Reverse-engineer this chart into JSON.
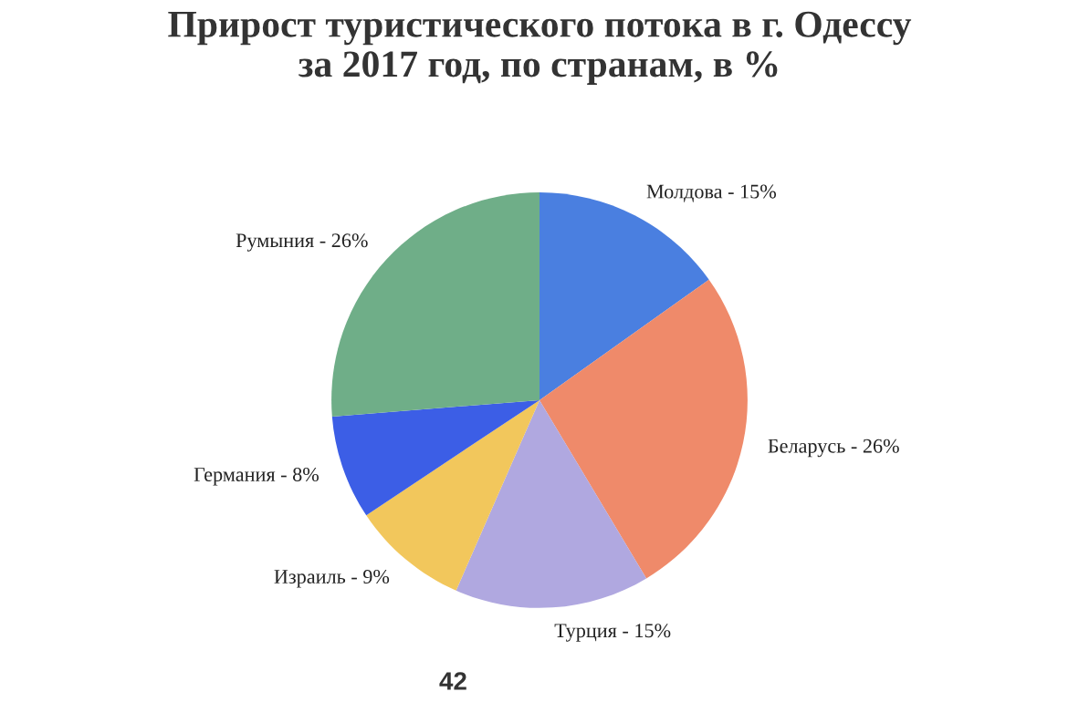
{
  "chart_data": {
    "type": "pie",
    "title": "Прирост туристического потока в г. Одессу\nза 2017 год, по странам, в %",
    "categories": [
      "Молдова - 15%",
      "Беларусь - 26%",
      "Турция - 15%",
      "Израиль - 9%",
      "Германия - 8%",
      "Румыния - 26%"
    ],
    "values": [
      15,
      26,
      15,
      9,
      8,
      26
    ],
    "colors": [
      "#4a7fe0",
      "#ef8a6a",
      "#b0a8e0",
      "#f2c75c",
      "#3c5ee6",
      "#6fae88"
    ],
    "annotations": [
      "42"
    ]
  }
}
